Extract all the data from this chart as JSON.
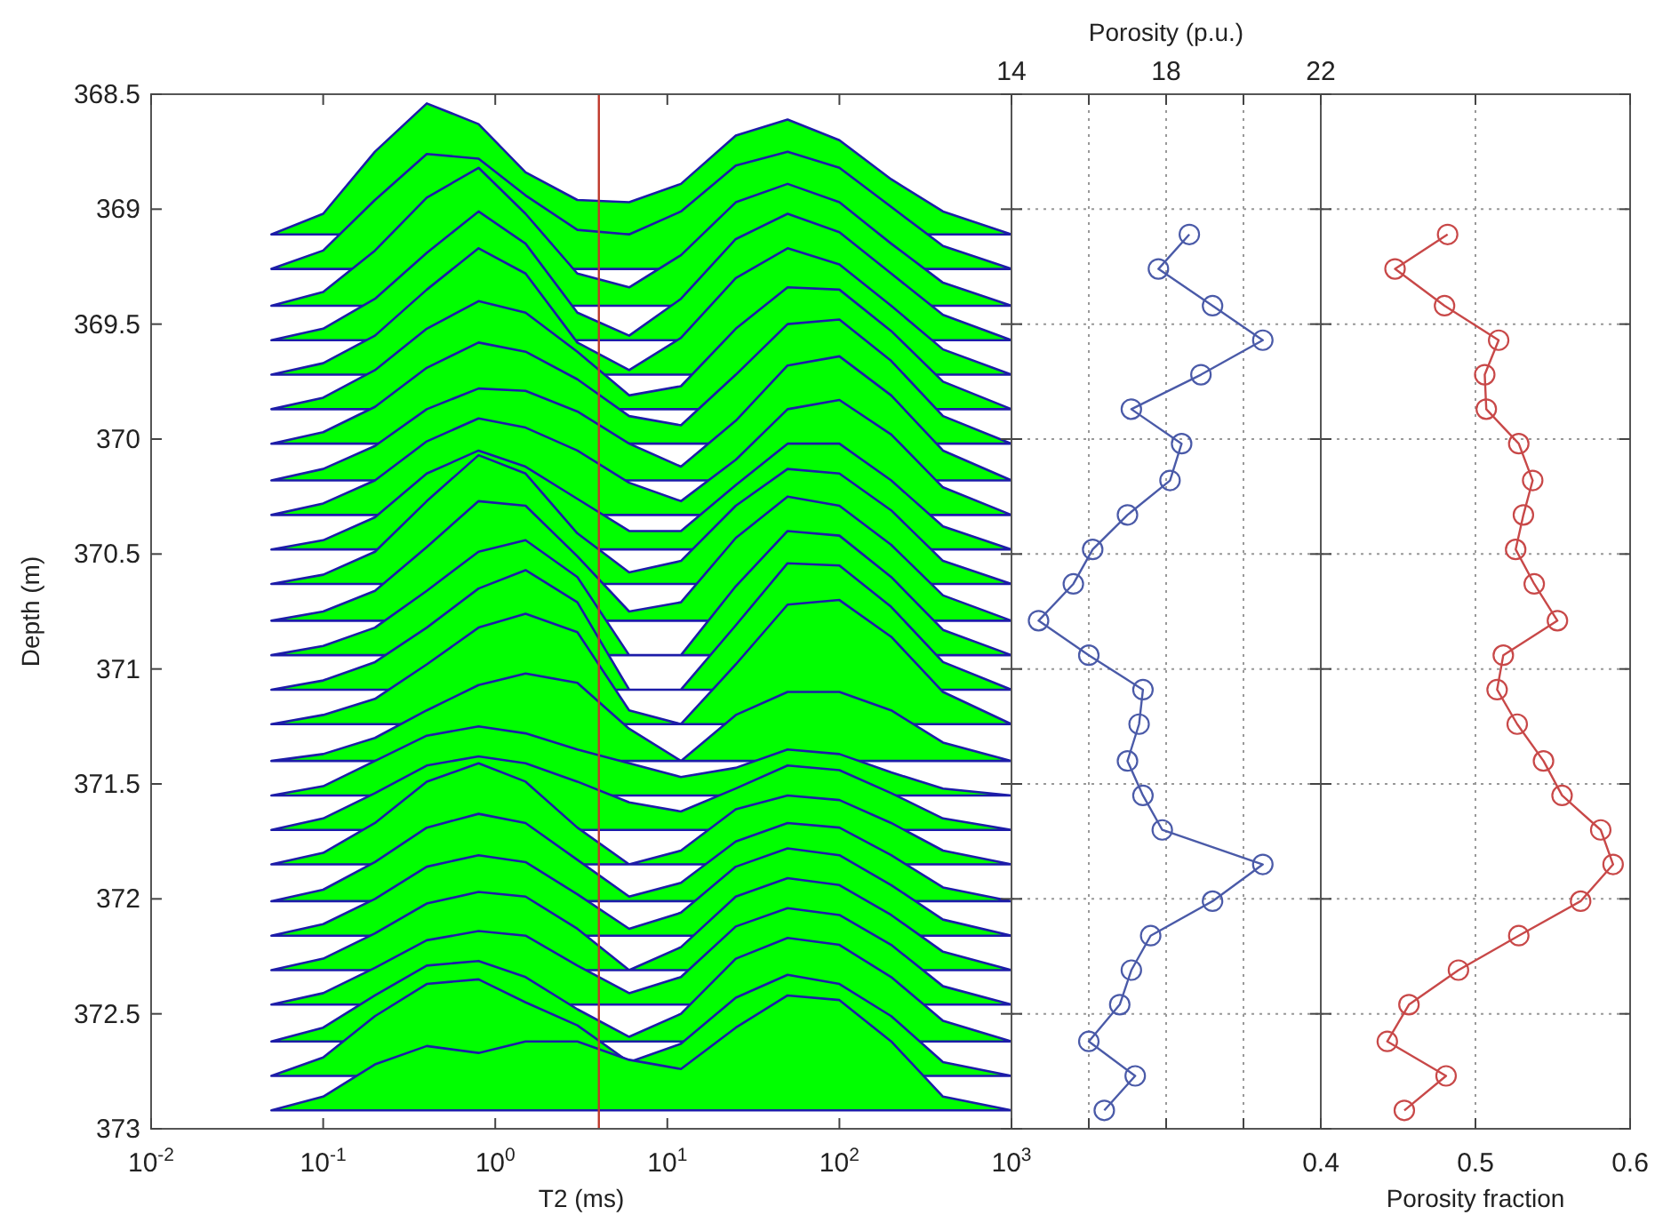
{
  "chart_data": [
    {
      "type": "area",
      "xlabel": "T2 (ms)",
      "ylabel": "Depth (m)",
      "log": "x",
      "xlim": [
        0.01,
        1000
      ],
      "xticks": [
        {
          "value": 0.01,
          "label": "10$^{-2}$"
        },
        {
          "value": 0.1,
          "label": "10$^{-1}$"
        },
        {
          "value": 1,
          "label": "10$^{0}$"
        },
        {
          "value": 10,
          "label": "10$^{1}$"
        },
        {
          "value": 100,
          "label": "10$^{2}$"
        },
        {
          "value": 1000,
          "label": "10$^{3}$"
        }
      ],
      "ylim": [
        373,
        368.5
      ],
      "yticks": [
        368.5,
        369,
        369.5,
        370,
        370.5,
        371,
        371.5,
        372,
        372.5,
        373
      ],
      "x": [
        0.05,
        0.1,
        0.2,
        0.4,
        0.8,
        1.5,
        3,
        6,
        12,
        25,
        50,
        100,
        200,
        400,
        1000
      ],
      "ref_lines": [
        {
          "axis": "x",
          "value": 4,
          "color": "#c0392b"
        }
      ],
      "series": [
        {
          "color": "#00ff00",
          "values": [
            369.11,
            369.02,
            368.75,
            368.54,
            368.63,
            368.84,
            368.96,
            368.97,
            368.89,
            368.68,
            368.61,
            368.7,
            368.87,
            369.01,
            369.11
          ]
        },
        {
          "color": "#00ff00",
          "values": [
            369.26,
            369.18,
            368.96,
            368.76,
            368.78,
            368.94,
            369.09,
            369.11,
            369.01,
            368.81,
            368.75,
            368.82,
            368.99,
            369.16,
            369.26
          ]
        },
        {
          "color": "#00ff00",
          "values": [
            369.42,
            369.36,
            369.18,
            368.95,
            368.82,
            369.02,
            369.28,
            369.34,
            369.2,
            368.97,
            368.89,
            368.97,
            369.15,
            369.32,
            369.42
          ]
        },
        {
          "color": "#00ff00",
          "values": [
            369.57,
            369.52,
            369.39,
            369.19,
            369.01,
            369.15,
            369.45,
            369.55,
            369.39,
            369.13,
            369.02,
            369.1,
            369.28,
            369.46,
            369.57
          ]
        },
        {
          "color": "#00ff00",
          "values": [
            369.72,
            369.67,
            369.55,
            369.35,
            369.17,
            369.28,
            369.58,
            369.7,
            369.56,
            369.3,
            369.17,
            369.24,
            369.42,
            369.61,
            369.72
          ]
        },
        {
          "color": "#00ff00",
          "values": [
            369.87,
            369.82,
            369.7,
            369.52,
            369.4,
            369.45,
            369.62,
            369.81,
            369.77,
            369.52,
            369.34,
            369.35,
            369.53,
            369.75,
            369.87
          ]
        },
        {
          "color": "#00ff00",
          "values": [
            370.02,
            369.97,
            369.86,
            369.69,
            369.58,
            369.62,
            369.74,
            369.9,
            369.94,
            369.72,
            369.5,
            369.48,
            369.66,
            369.9,
            370.02
          ]
        },
        {
          "color": "#00ff00",
          "values": [
            370.18,
            370.13,
            370.03,
            369.87,
            369.78,
            369.79,
            369.88,
            370.02,
            370.12,
            369.92,
            369.68,
            369.64,
            369.81,
            370.05,
            370.18
          ]
        },
        {
          "color": "#00ff00",
          "values": [
            370.33,
            370.28,
            370.18,
            370.01,
            369.91,
            369.95,
            370.05,
            370.19,
            370.27,
            370.09,
            369.87,
            369.83,
            369.98,
            370.21,
            370.33
          ]
        },
        {
          "color": "#00ff00",
          "values": [
            370.48,
            370.44,
            370.34,
            370.15,
            370.05,
            370.12,
            370.26,
            370.4,
            370.4,
            370.2,
            370.02,
            370.02,
            370.18,
            370.38,
            370.48
          ]
        },
        {
          "color": "#00ff00",
          "values": [
            370.63,
            370.59,
            370.49,
            370.27,
            370.07,
            370.15,
            370.41,
            370.58,
            370.53,
            370.29,
            370.13,
            370.15,
            370.31,
            370.53,
            370.63
          ]
        },
        {
          "color": "#00ff00",
          "values": [
            370.79,
            370.75,
            370.66,
            370.47,
            370.27,
            370.29,
            370.51,
            370.75,
            370.71,
            370.43,
            370.25,
            370.29,
            370.46,
            370.68,
            370.79
          ]
        },
        {
          "color": "#00ff00",
          "values": [
            370.94,
            370.9,
            370.82,
            370.66,
            370.49,
            370.44,
            370.6,
            370.94,
            370.94,
            370.64,
            370.4,
            370.42,
            370.6,
            370.83,
            370.94
          ]
        },
        {
          "color": "#00ff00",
          "values": [
            371.09,
            371.05,
            370.97,
            370.82,
            370.65,
            370.57,
            370.71,
            371.09,
            371.09,
            370.81,
            370.54,
            370.55,
            370.73,
            370.97,
            371.09
          ]
        },
        {
          "color": "#00ff00",
          "values": [
            371.24,
            371.2,
            371.13,
            370.98,
            370.82,
            370.76,
            370.84,
            371.18,
            371.24,
            370.98,
            370.72,
            370.7,
            370.86,
            371.1,
            371.24
          ]
        },
        {
          "color": "#00ff00",
          "values": [
            371.4,
            371.37,
            371.3,
            371.18,
            371.07,
            371.02,
            371.06,
            371.26,
            371.4,
            371.2,
            371.1,
            371.1,
            371.18,
            371.32,
            371.4
          ]
        },
        {
          "color": "#00ff00",
          "values": [
            371.55,
            371.51,
            371.4,
            371.29,
            371.25,
            371.28,
            371.35,
            371.41,
            371.47,
            371.43,
            371.35,
            371.37,
            371.45,
            371.52,
            371.55
          ]
        },
        {
          "color": "#00ff00",
          "values": [
            371.7,
            371.65,
            371.54,
            371.42,
            371.38,
            371.41,
            371.49,
            371.58,
            371.62,
            371.52,
            371.42,
            371.44,
            371.54,
            371.65,
            371.7
          ]
        },
        {
          "color": "#00ff00",
          "values": [
            371.85,
            371.8,
            371.67,
            371.49,
            371.41,
            371.49,
            371.69,
            371.85,
            371.79,
            371.61,
            371.55,
            371.57,
            371.67,
            371.79,
            371.85
          ]
        },
        {
          "color": "#00ff00",
          "values": [
            372.01,
            371.96,
            371.84,
            371.69,
            371.63,
            371.67,
            371.83,
            371.99,
            371.93,
            371.75,
            371.67,
            371.69,
            371.81,
            371.95,
            372.01
          ]
        },
        {
          "color": "#00ff00",
          "values": [
            372.16,
            372.11,
            372.0,
            371.86,
            371.81,
            371.84,
            371.98,
            372.13,
            372.06,
            371.86,
            371.78,
            371.81,
            371.94,
            372.09,
            372.16
          ]
        },
        {
          "color": "#00ff00",
          "values": [
            372.31,
            372.26,
            372.15,
            372.02,
            371.97,
            371.99,
            372.13,
            372.31,
            372.21,
            371.99,
            371.91,
            371.94,
            372.07,
            372.23,
            372.31
          ]
        },
        {
          "color": "#00ff00",
          "values": [
            372.46,
            372.41,
            372.3,
            372.18,
            372.14,
            372.16,
            372.29,
            372.41,
            372.34,
            372.12,
            372.04,
            372.07,
            372.2,
            372.38,
            372.46
          ]
        },
        {
          "color": "#00ff00",
          "values": [
            372.62,
            372.56,
            372.42,
            372.29,
            372.27,
            372.34,
            372.48,
            372.6,
            372.5,
            372.26,
            372.17,
            372.2,
            372.34,
            372.53,
            372.62
          ]
        },
        {
          "color": "#00ff00",
          "values": [
            372.77,
            372.69,
            372.51,
            372.37,
            372.35,
            372.45,
            372.55,
            372.71,
            372.63,
            372.43,
            372.33,
            372.37,
            372.51,
            372.71,
            372.77
          ]
        },
        {
          "color": "#00ff00",
          "values": [
            372.92,
            372.86,
            372.72,
            372.64,
            372.67,
            372.62,
            372.62,
            372.7,
            372.74,
            372.56,
            372.42,
            372.44,
            372.62,
            372.86,
            372.92
          ]
        }
      ]
    },
    {
      "type": "line",
      "xlabel": "Porosity (p.u.)",
      "xlim": [
        14,
        22
      ],
      "xticks": [
        14,
        {
          "value": 16,
          "label": null
        },
        18,
        {
          "value": 20,
          "label": null
        },
        22
      ],
      "ylim": [
        373,
        368.5
      ],
      "yticks": [
        368.5,
        369,
        369.5,
        370,
        370.5,
        371,
        371.5,
        372,
        372.5,
        373
      ],
      "grid": true,
      "marker": "circle",
      "tick_labels": "x",
      "series": [
        {
          "color": "#4a5aa8",
          "x": [
            18.6,
            17.8,
            19.2,
            20.5,
            18.9,
            17.1,
            18.4,
            18.1,
            17.0,
            16.1,
            15.6,
            14.7,
            16.0,
            17.4,
            17.3,
            17.0,
            17.4,
            17.9,
            20.5,
            19.2,
            17.6,
            17.1,
            16.8,
            16.0,
            17.2,
            16.4
          ],
          "values": [
            369.11,
            369.26,
            369.42,
            369.57,
            369.72,
            369.87,
            370.02,
            370.18,
            370.33,
            370.48,
            370.63,
            370.79,
            370.94,
            371.09,
            371.24,
            371.4,
            371.55,
            371.7,
            371.85,
            372.01,
            372.16,
            372.31,
            372.46,
            372.62,
            372.77,
            372.92
          ]
        }
      ]
    },
    {
      "type": "line",
      "xlabel": "Porosity fraction",
      "xlim": [
        0.4,
        0.6
      ],
      "xticks": [
        0.4,
        0.5,
        0.6
      ],
      "ylim": [
        373,
        368.5
      ],
      "yticks": [
        368.5,
        369,
        369.5,
        370,
        370.5,
        371,
        371.5,
        372,
        372.5,
        373
      ],
      "grid": true,
      "marker": "circle",
      "tick_labels": "x",
      "series": [
        {
          "color": "#c84848",
          "x": [
            0.482,
            0.448,
            0.48,
            0.515,
            0.506,
            0.507,
            0.528,
            0.537,
            0.531,
            0.526,
            0.538,
            0.553,
            0.518,
            0.514,
            0.527,
            0.544,
            0.556,
            0.581,
            0.589,
            0.568,
            0.528,
            0.489,
            0.457,
            0.443,
            0.481,
            0.454
          ],
          "values": [
            369.11,
            369.26,
            369.42,
            369.57,
            369.72,
            369.87,
            370.02,
            370.18,
            370.33,
            370.48,
            370.63,
            370.79,
            370.94,
            371.09,
            371.24,
            371.4,
            371.55,
            371.7,
            371.85,
            372.01,
            372.16,
            372.31,
            372.46,
            372.62,
            372.77,
            372.92
          ]
        }
      ]
    }
  ]
}
